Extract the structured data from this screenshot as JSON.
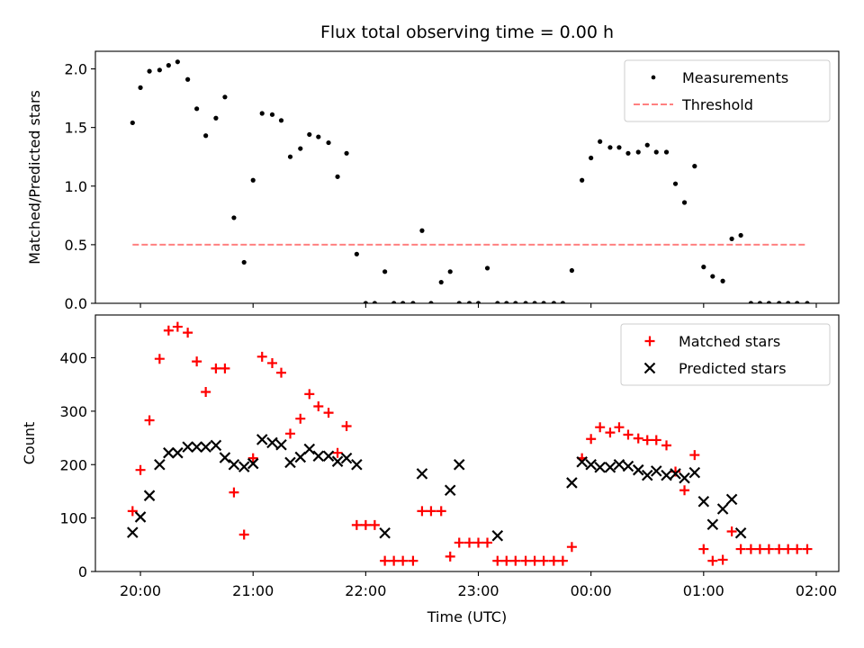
{
  "chart_data": {
    "type": "scatter",
    "title": "Flux total observing time = 0.00 h",
    "xlabel": "Time (UTC)",
    "x_ticks": [
      "20:00",
      "21:00",
      "22:00",
      "23:00",
      "00:00",
      "01:00",
      "02:00"
    ],
    "xlim_hours": [
      19.6,
      26.2
    ],
    "colors": {
      "measurements": "#000000",
      "threshold": "#ff8080",
      "matched": "#ff0000",
      "predicted": "#000000"
    },
    "panels": [
      {
        "name": "ratio",
        "ylabel": "Matched/Predicted stars",
        "ylim": [
          0,
          2.15
        ],
        "y_ticks": [
          "0.0",
          "0.5",
          "1.0",
          "1.5",
          "2.0"
        ],
        "legend_position": "upper right",
        "series": [
          {
            "name": "Measurements",
            "marker": "dot",
            "x": [
              19.93,
              20.0,
              20.08,
              20.17,
              20.25,
              20.33,
              20.42,
              20.5,
              20.58,
              20.67,
              20.75,
              20.83,
              20.92,
              21.0,
              21.08,
              21.17,
              21.25,
              21.33,
              21.42,
              21.5,
              21.58,
              21.67,
              21.75,
              21.83,
              21.92,
              22.0,
              22.08,
              22.17,
              22.25,
              22.33,
              22.42,
              22.5,
              22.58,
              22.67,
              22.75,
              22.83,
              22.92,
              23.0,
              23.08,
              23.17,
              23.25,
              23.33,
              23.42,
              23.5,
              23.58,
              23.67,
              23.75,
              23.83,
              23.92,
              24.0,
              24.08,
              24.17,
              24.25,
              24.33,
              24.42,
              24.5,
              24.58,
              24.67,
              24.75,
              24.83,
              24.92,
              25.0,
              25.08,
              25.17,
              25.25,
              25.33,
              25.42,
              25.5,
              25.58,
              25.67,
              25.75,
              25.83,
              25.92
            ],
            "y": [
              1.54,
              1.84,
              1.98,
              1.99,
              2.03,
              2.06,
              1.91,
              1.66,
              1.43,
              1.58,
              1.76,
              0.73,
              0.35,
              1.05,
              1.62,
              1.61,
              1.56,
              1.25,
              1.32,
              1.44,
              1.42,
              1.37,
              1.08,
              1.28,
              0.42,
              0.0,
              0.0,
              0.27,
              0.0,
              0.0,
              0.0,
              0.62,
              0.0,
              0.18,
              0.27,
              0.0,
              0.0,
              0.0,
              0.3,
              0.0,
              0.0,
              0.0,
              0.0,
              0.0,
              0.0,
              0.0,
              0.0,
              0.28,
              1.05,
              1.24,
              1.38,
              1.33,
              1.33,
              1.28,
              1.29,
              1.35,
              1.29,
              1.29,
              1.02,
              0.86,
              1.17,
              0.31,
              0.23,
              0.19,
              0.55,
              0.58,
              0.0,
              0.0,
              0.0,
              0.0,
              0.0,
              0.0,
              0.0
            ]
          },
          {
            "name": "Threshold",
            "marker": "dashed-line",
            "x": [
              19.93,
              25.92
            ],
            "y": [
              0.5,
              0.5
            ]
          }
        ]
      },
      {
        "name": "counts",
        "ylabel": "Count",
        "ylim": [
          0,
          480
        ],
        "y_ticks": [
          "0",
          "100",
          "200",
          "300",
          "400"
        ],
        "legend_position": "upper right",
        "series": [
          {
            "name": "Matched stars",
            "marker": "plus",
            "x": [
              19.93,
              20.0,
              20.08,
              20.17,
              20.25,
              20.33,
              20.42,
              20.5,
              20.58,
              20.67,
              20.75,
              20.83,
              20.92,
              21.0,
              21.08,
              21.17,
              21.25,
              21.33,
              21.42,
              21.5,
              21.58,
              21.67,
              21.75,
              21.83,
              21.92,
              22.0,
              22.08,
              22.17,
              22.25,
              22.33,
              22.42,
              22.5,
              22.58,
              22.67,
              22.75,
              22.83,
              22.92,
              23.0,
              23.08,
              23.17,
              23.25,
              23.33,
              23.42,
              23.5,
              23.58,
              23.67,
              23.75,
              23.83,
              23.92,
              24.0,
              24.08,
              24.17,
              24.25,
              24.33,
              24.42,
              24.5,
              24.58,
              24.67,
              24.75,
              24.83,
              24.92,
              25.0,
              25.08,
              25.17,
              25.25,
              25.33,
              25.42,
              25.5,
              25.58,
              25.67,
              25.75,
              25.83,
              25.92
            ],
            "y": [
              113,
              190,
              283,
              398,
              451,
              458,
              447,
              393,
              336,
              380,
              380,
              148,
              69,
              212,
              402,
              390,
              372,
              258,
              286,
              332,
              309,
              297,
              222,
              272,
              87,
              87,
              87,
              20,
              20,
              20,
              20,
              113,
              113,
              113,
              28,
              54,
              54,
              54,
              54,
              20,
              20,
              20,
              20,
              20,
              20,
              20,
              20,
              46,
              212,
              248,
              270,
              260,
              270,
              256,
              249,
              246,
              246,
              236,
              187,
              152,
              218,
              42,
              20,
              22,
              75,
              42,
              42,
              42,
              42,
              42,
              42,
              42,
              42
            ]
          },
          {
            "name": "Predicted stars",
            "marker": "x",
            "x": [
              19.93,
              20.0,
              20.08,
              20.17,
              20.25,
              20.33,
              20.42,
              20.5,
              20.58,
              20.67,
              20.75,
              20.83,
              20.92,
              21.0,
              21.08,
              21.17,
              21.25,
              21.33,
              21.42,
              21.5,
              21.58,
              21.67,
              21.75,
              21.83,
              21.92,
              22.17,
              22.5,
              22.75,
              22.83,
              23.17,
              23.83,
              23.92,
              24.0,
              24.08,
              24.17,
              24.25,
              24.33,
              24.42,
              24.5,
              24.58,
              24.67,
              24.75,
              24.83,
              24.92,
              25.0,
              25.08,
              25.17,
              25.25,
              25.33
            ],
            "y": [
              73,
              102,
              142,
              200,
              222,
              222,
              233,
              233,
              233,
              236,
              213,
              200,
              196,
              202,
              247,
              241,
              237,
              204,
              214,
              229,
              216,
              216,
              206,
              212,
              200,
              72,
              183,
              152,
              200,
              67,
              166,
              205,
              200,
              195,
              195,
              200,
              197,
              190,
              180,
              188,
              180,
              183,
              175,
              185,
              131,
              88,
              117,
              135,
              72
            ]
          }
        ]
      }
    ]
  }
}
